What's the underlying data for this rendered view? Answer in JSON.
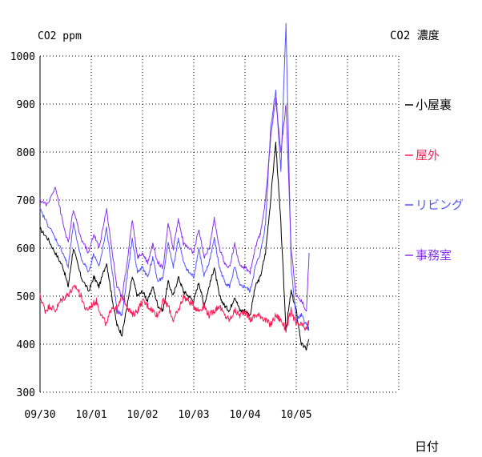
{
  "chart_data": {
    "type": "line",
    "title": "CO2 濃度",
    "ylabel": "CO2 ppm",
    "xlabel": "日付",
    "ylim": [
      300,
      1000
    ],
    "yticks": [
      300,
      400,
      500,
      600,
      700,
      800,
      900,
      1000
    ],
    "xlim_days": [
      0,
      7
    ],
    "xtick_labels": [
      "09/30",
      "10/01",
      "10/02",
      "10/03",
      "10/04",
      "10/05"
    ],
    "grid": true,
    "legend_position": "right",
    "colors": {
      "black": "#000000",
      "crimson": "#ff1a55",
      "blue": "#5555ff",
      "purple": "#8833ee"
    },
    "series": [
      {
        "name": "小屋裏",
        "color": "#000000",
        "x": [
          0,
          0.15,
          0.3,
          0.45,
          0.55,
          0.65,
          0.8,
          0.95,
          1.05,
          1.15,
          1.3,
          1.4,
          1.5,
          1.6,
          1.7,
          1.8,
          1.9,
          2.0,
          2.1,
          2.2,
          2.3,
          2.4,
          2.5,
          2.6,
          2.7,
          2.8,
          2.9,
          3.0,
          3.1,
          3.2,
          3.3,
          3.4,
          3.5,
          3.6,
          3.7,
          3.8,
          3.9,
          4.0,
          4.1,
          4.2,
          4.3,
          4.4,
          4.5,
          4.6,
          4.7,
          4.8,
          4.9,
          5.0,
          5.1,
          5.2,
          5.25
        ],
        "y": [
          640,
          620,
          590,
          560,
          520,
          600,
          540,
          510,
          540,
          520,
          570,
          500,
          440,
          420,
          480,
          540,
          500,
          510,
          490,
          520,
          480,
          470,
          530,
          500,
          540,
          510,
          500,
          490,
          530,
          480,
          520,
          560,
          500,
          480,
          470,
          500,
          470,
          470,
          460,
          520,
          540,
          590,
          700,
          820,
          650,
          430,
          510,
          470,
          400,
          390,
          410
        ]
      },
      {
        "name": "屋外",
        "color": "#ff1a55",
        "x": [
          0,
          0.1,
          0.2,
          0.3,
          0.4,
          0.5,
          0.6,
          0.7,
          0.8,
          0.9,
          1.0,
          1.1,
          1.2,
          1.3,
          1.4,
          1.5,
          1.6,
          1.7,
          1.8,
          1.9,
          2.0,
          2.1,
          2.2,
          2.3,
          2.4,
          2.5,
          2.6,
          2.7,
          2.8,
          2.9,
          3.0,
          3.1,
          3.2,
          3.3,
          3.4,
          3.5,
          3.6,
          3.7,
          3.8,
          3.9,
          4.0,
          4.1,
          4.2,
          4.3,
          4.4,
          4.5,
          4.6,
          4.7,
          4.8,
          4.9,
          5.0,
          5.1,
          5.2,
          5.25
        ],
        "y": [
          500,
          470,
          480,
          470,
          490,
          500,
          510,
          520,
          500,
          470,
          480,
          490,
          460,
          440,
          480,
          470,
          500,
          480,
          460,
          470,
          490,
          480,
          470,
          460,
          490,
          480,
          450,
          470,
          500,
          490,
          480,
          470,
          480,
          460,
          470,
          480,
          460,
          450,
          470,
          460,
          470,
          450,
          460,
          460,
          450,
          440,
          460,
          450,
          430,
          470,
          440,
          440,
          430,
          450
        ]
      },
      {
        "name": "リビング",
        "color": "#5555ff",
        "x": [
          0,
          0.15,
          0.3,
          0.45,
          0.55,
          0.65,
          0.8,
          0.95,
          1.05,
          1.15,
          1.3,
          1.4,
          1.5,
          1.6,
          1.7,
          1.8,
          1.9,
          2.0,
          2.1,
          2.2,
          2.3,
          2.4,
          2.5,
          2.6,
          2.7,
          2.8,
          2.9,
          3.0,
          3.1,
          3.2,
          3.3,
          3.4,
          3.5,
          3.6,
          3.7,
          3.8,
          3.9,
          4.0,
          4.1,
          4.2,
          4.3,
          4.4,
          4.5,
          4.6,
          4.7,
          4.8,
          4.9,
          5.0,
          5.1,
          5.2,
          5.25
        ],
        "y": [
          680,
          650,
          620,
          590,
          560,
          650,
          580,
          550,
          590,
          560,
          640,
          560,
          470,
          460,
          540,
          620,
          550,
          560,
          540,
          580,
          530,
          540,
          610,
          560,
          620,
          570,
          550,
          540,
          600,
          540,
          570,
          620,
          560,
          530,
          520,
          560,
          520,
          520,
          510,
          560,
          590,
          650,
          850,
          930,
          760,
          1070,
          560,
          450,
          460,
          440,
          430
        ]
      },
      {
        "name": "事務室",
        "color": "#8833ee",
        "x": [
          0,
          0.15,
          0.3,
          0.45,
          0.55,
          0.65,
          0.8,
          0.95,
          1.05,
          1.15,
          1.3,
          1.4,
          1.5,
          1.6,
          1.7,
          1.8,
          1.9,
          2.0,
          2.1,
          2.2,
          2.3,
          2.4,
          2.5,
          2.6,
          2.7,
          2.8,
          2.9,
          3.0,
          3.1,
          3.2,
          3.3,
          3.4,
          3.5,
          3.6,
          3.7,
          3.8,
          3.9,
          4.0,
          4.1,
          4.2,
          4.3,
          4.4,
          4.5,
          4.6,
          4.7,
          4.8,
          4.9,
          5.0,
          5.1,
          5.2,
          5.25
        ],
        "y": [
          700,
          690,
          730,
          650,
          610,
          680,
          620,
          590,
          630,
          600,
          680,
          600,
          520,
          500,
          570,
          660,
          580,
          590,
          570,
          610,
          570,
          560,
          650,
          600,
          660,
          610,
          600,
          590,
          640,
          580,
          600,
          660,
          600,
          570,
          560,
          610,
          560,
          560,
          550,
          600,
          630,
          700,
          830,
          910,
          800,
          900,
          600,
          500,
          490,
          470,
          590
        ]
      }
    ]
  }
}
